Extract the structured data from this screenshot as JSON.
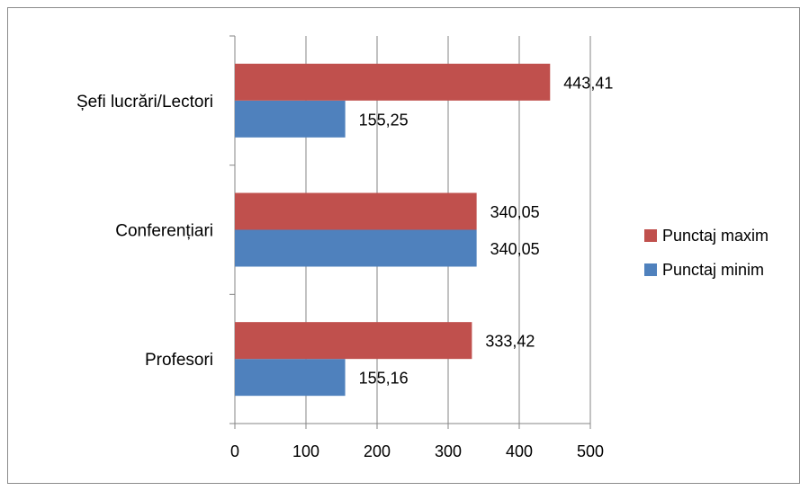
{
  "chart_data": {
    "type": "bar",
    "orientation": "horizontal",
    "categories": [
      "Profesori",
      "Conferențiari",
      "Șefi lucrări/Lectori"
    ],
    "series": [
      {
        "name": "Punctaj minim",
        "color": "#4f81bd",
        "values": [
          155.16,
          340.05,
          155.25
        ],
        "labels": [
          "155,16",
          "340,05",
          "155,25"
        ]
      },
      {
        "name": "Punctaj maxim",
        "color": "#c0504d",
        "values": [
          333.42,
          340.05,
          443.41
        ],
        "labels": [
          "333,42",
          "340,05",
          "443,41"
        ]
      }
    ],
    "xlim": [
      0,
      500
    ],
    "xticks": [
      0,
      100,
      200,
      300,
      400,
      500
    ],
    "xtick_labels": [
      "0",
      "100",
      "200",
      "300",
      "400",
      "500"
    ],
    "grid": "vertical",
    "legend": "right",
    "gridline_color": "#868686"
  }
}
